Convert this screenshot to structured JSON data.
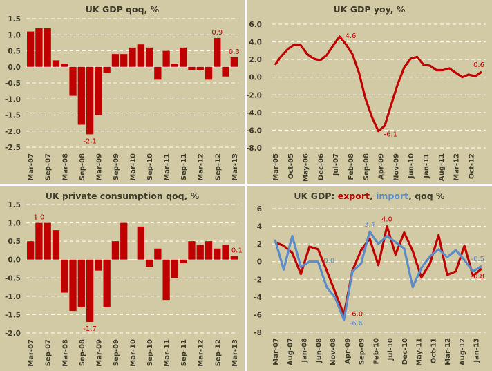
{
  "colors": {
    "background": "#D2CAA5",
    "text": "#3E3B2B",
    "red": "#C00000",
    "blue": "#5B8CC8",
    "grid": "#FFFFFF"
  },
  "chart_data": [
    {
      "id": "gdp-qoq",
      "type": "bar",
      "title": "UK GDP qoq, %",
      "xlabel": "",
      "ylabel": "",
      "ylim": [
        -2.5,
        1.5
      ],
      "yticks": [
        1.5,
        1.0,
        0.5,
        0.0,
        -0.5,
        -1.0,
        -1.5,
        -2.0,
        -2.5
      ],
      "ytick_format": 1,
      "grid": true,
      "categories": [
        "Mar-07",
        "Jun-07",
        "Sep-07",
        "Dec-07",
        "Mar-08",
        "Jun-08",
        "Sep-08",
        "Dec-08",
        "Mar-09",
        "Jun-09",
        "Sep-09",
        "Dec-09",
        "Mar-10",
        "Jun-10",
        "Sep-10",
        "Dec-10",
        "Mar-11",
        "Jun-11",
        "Sep-11",
        "Dec-11",
        "Mar-12",
        "Jun-12",
        "Sep-12",
        "Dec-12",
        "Mar-13"
      ],
      "xtick_labels": [
        "Mar-07",
        "Sep-07",
        "Mar-08",
        "Sep-08",
        "Mar-09",
        "Sep-09",
        "Mar-10",
        "Sep-10",
        "Mar-11",
        "Sep-11",
        "Mar-12",
        "Sep-12",
        "Mar-13"
      ],
      "xtick_every": 2,
      "series": [
        {
          "name": "GDP qoq",
          "color": "#C00000",
          "values": [
            1.1,
            1.2,
            1.2,
            0.2,
            0.1,
            -0.9,
            -1.8,
            -2.1,
            -1.5,
            -0.2,
            0.4,
            0.4,
            0.6,
            0.7,
            0.6,
            -0.4,
            0.5,
            0.1,
            0.6,
            -0.1,
            -0.1,
            -0.4,
            0.9,
            -0.3,
            0.3
          ]
        }
      ],
      "annotations": [
        {
          "index": 7,
          "text": "-2.1",
          "pos": "below",
          "color": "#C00000"
        },
        {
          "index": 22,
          "text": "0.9",
          "pos": "above",
          "color": "#C00000"
        },
        {
          "index": 24,
          "text": "0.3",
          "pos": "above",
          "color": "#C00000"
        }
      ]
    },
    {
      "id": "gdp-yoy",
      "type": "line",
      "title": "UK GDP yoy, %",
      "xlabel": "",
      "ylabel": "",
      "ylim": [
        -8,
        6
      ],
      "yticks": [
        6,
        4,
        2,
        0,
        -2,
        -4,
        -6,
        -8
      ],
      "ytick_format": 1,
      "grid": true,
      "x_axis": "monthly",
      "x_start": "Mar-05",
      "x_months": 97,
      "xtick_labels": [
        "Mar-05",
        "Oct-05",
        "May-06",
        "Dec-06",
        "Jul-07",
        "Feb-08",
        "Sep-08",
        "Apr-09",
        "Nov-09",
        "Jun-10",
        "Jan-11",
        "Aug-11",
        "Mar-12",
        "Oct-12"
      ],
      "xtick_every_months": 7,
      "point_every_months": 3,
      "series": [
        {
          "name": "GDP yoy",
          "color": "#C00000",
          "x": [
            "Mar-05",
            "Jun-05",
            "Sep-05",
            "Dec-05",
            "Mar-06",
            "Jun-06",
            "Sep-06",
            "Dec-06",
            "Mar-07",
            "Jun-07",
            "Sep-07",
            "Dec-07",
            "Mar-08",
            "Jun-08",
            "Sep-08",
            "Dec-08",
            "Mar-09",
            "Jun-09",
            "Sep-09",
            "Dec-09",
            "Mar-10",
            "Jun-10",
            "Sep-10",
            "Dec-10",
            "Mar-11",
            "Jun-11",
            "Sep-11",
            "Dec-11",
            "Mar-12",
            "Jun-12",
            "Sep-12",
            "Dec-12",
            "Mar-13"
          ],
          "values": [
            1.4,
            2.4,
            3.2,
            3.7,
            3.6,
            2.6,
            2.1,
            1.9,
            2.5,
            3.6,
            4.6,
            3.7,
            2.6,
            0.5,
            -2.4,
            -4.5,
            -6.1,
            -5.5,
            -3.1,
            -0.8,
            1.1,
            2.1,
            2.3,
            1.4,
            1.3,
            0.8,
            0.8,
            1.0,
            0.5,
            0.0,
            0.3,
            0.1,
            0.6
          ]
        }
      ],
      "annotations": [
        {
          "index": 10,
          "text": "4.6",
          "pos": "right",
          "color": "#C00000"
        },
        {
          "index": 16,
          "text": "-6.1",
          "pos": "right-below",
          "color": "#C00000"
        },
        {
          "index": 32,
          "text": "0.6",
          "pos": "above",
          "color": "#C00000"
        }
      ]
    },
    {
      "id": "consumption-qoq",
      "type": "bar",
      "title": "UK private consumption qoq, %",
      "xlabel": "",
      "ylabel": "",
      "ylim": [
        -2.0,
        1.5
      ],
      "yticks": [
        1.5,
        1.0,
        0.5,
        0.0,
        -0.5,
        -1.0,
        -1.5,
        -2.0
      ],
      "ytick_format": 1,
      "grid": true,
      "categories": [
        "Mar-07",
        "Jun-07",
        "Sep-07",
        "Dec-07",
        "Mar-08",
        "Jun-08",
        "Sep-08",
        "Dec-08",
        "Mar-09",
        "Jun-09",
        "Sep-09",
        "Dec-09",
        "Mar-10",
        "Jun-10",
        "Sep-10",
        "Dec-10",
        "Mar-11",
        "Jun-11",
        "Sep-11",
        "Dec-11",
        "Mar-12",
        "Jun-12",
        "Sep-12",
        "Dec-12",
        "Mar-13"
      ],
      "xtick_labels": [
        "Mar-07",
        "Sep-07",
        "Mar-08",
        "Sep-08",
        "Mar-09",
        "Sep-09",
        "Mar-10",
        "Sep-10",
        "Mar-11",
        "Sep-11",
        "Mar-12",
        "Sep-12",
        "Mar-13"
      ],
      "xtick_every": 2,
      "series": [
        {
          "name": "Private consumption qoq",
          "color": "#C00000",
          "values": [
            0.5,
            1.0,
            1.0,
            0.8,
            -0.9,
            -1.4,
            -1.3,
            -1.7,
            -0.3,
            -1.3,
            0.5,
            1.0,
            0.0,
            0.9,
            -0.2,
            0.3,
            -1.1,
            -0.5,
            -0.1,
            0.5,
            0.4,
            0.5,
            0.3,
            0.4,
            0.1
          ]
        }
      ],
      "annotations": [
        {
          "index": 1,
          "text": "1.0",
          "pos": "above",
          "color": "#C00000"
        },
        {
          "index": 7,
          "text": "-1.7",
          "pos": "below",
          "color": "#C00000"
        },
        {
          "index": 24,
          "text": "0.1",
          "pos": "above",
          "color": "#C00000"
        }
      ]
    },
    {
      "id": "export-import-qoq",
      "type": "line",
      "title_parts": [
        {
          "text": "UK GDP: ",
          "color": "#3E3B2B"
        },
        {
          "text": "export",
          "color": "#C00000"
        },
        {
          "text": ", ",
          "color": "#3E3B2B"
        },
        {
          "text": "import",
          "color": "#5B8CC8"
        },
        {
          "text": ", qoq %",
          "color": "#3E3B2B"
        }
      ],
      "title": "UK GDP: export, import, qoq %",
      "xlabel": "",
      "ylabel": "",
      "ylim": [
        -8,
        6
      ],
      "yticks": [
        6,
        4,
        2,
        0,
        -2,
        -4,
        -6,
        -8
      ],
      "ytick_format": 0,
      "grid": true,
      "x_axis": "monthly",
      "x_start": "Mar-07",
      "x_months": 73,
      "xtick_labels": [
        "Mar-07",
        "Aug-07",
        "Jan-08",
        "Jun-08",
        "Nov-08",
        "Apr-09",
        "Sep-09",
        "Feb-10",
        "Jul-10",
        "Dec-10",
        "May-11",
        "Oct-11",
        "Mar-12",
        "Aug-12",
        "Jan-13"
      ],
      "xtick_every_months": 5,
      "point_every_months": 3,
      "series": [
        {
          "name": "export",
          "color": "#C00000",
          "values": [
            2.2,
            1.8,
            1.0,
            -1.4,
            1.7,
            1.4,
            -1.0,
            -3.5,
            -6.0,
            -1.0,
            1.3,
            2.6,
            -0.4,
            4.0,
            0.8,
            3.3,
            1.2,
            -1.8,
            -0.2,
            3.0,
            -1.5,
            -1.1,
            1.8,
            -1.6,
            -0.8
          ]
        },
        {
          "name": "import",
          "color": "#5B8CC8",
          "values": [
            2.5,
            -0.9,
            2.9,
            -0.6,
            0.0,
            0.0,
            -2.9,
            -4.1,
            -6.6,
            -1.1,
            -0.2,
            3.4,
            2.0,
            2.9,
            2.2,
            1.5,
            -2.9,
            -0.7,
            0.6,
            1.4,
            0.5,
            1.3,
            0.2,
            -1.1,
            -0.5
          ]
        }
      ],
      "annotations": [
        {
          "series": 1,
          "index": 5,
          "text": "0.0",
          "pos": "right",
          "color": "#5B8CC8"
        },
        {
          "series": 0,
          "index": 8,
          "text": "-6.0",
          "pos": "right",
          "color": "#C00000"
        },
        {
          "series": 1,
          "index": 8,
          "text": "-6.6",
          "pos": "right-below",
          "color": "#5B8CC8"
        },
        {
          "series": 1,
          "index": 11,
          "text": "3.4",
          "pos": "above",
          "color": "#5B8CC8"
        },
        {
          "series": 0,
          "index": 13,
          "text": "4.0",
          "pos": "above",
          "color": "#C00000"
        },
        {
          "series": 1,
          "index": 24,
          "text": "-0.5",
          "pos": "above",
          "color": "#5B8CC8"
        },
        {
          "series": 0,
          "index": 24,
          "text": "-0.8",
          "pos": "below",
          "color": "#C00000"
        }
      ]
    }
  ]
}
